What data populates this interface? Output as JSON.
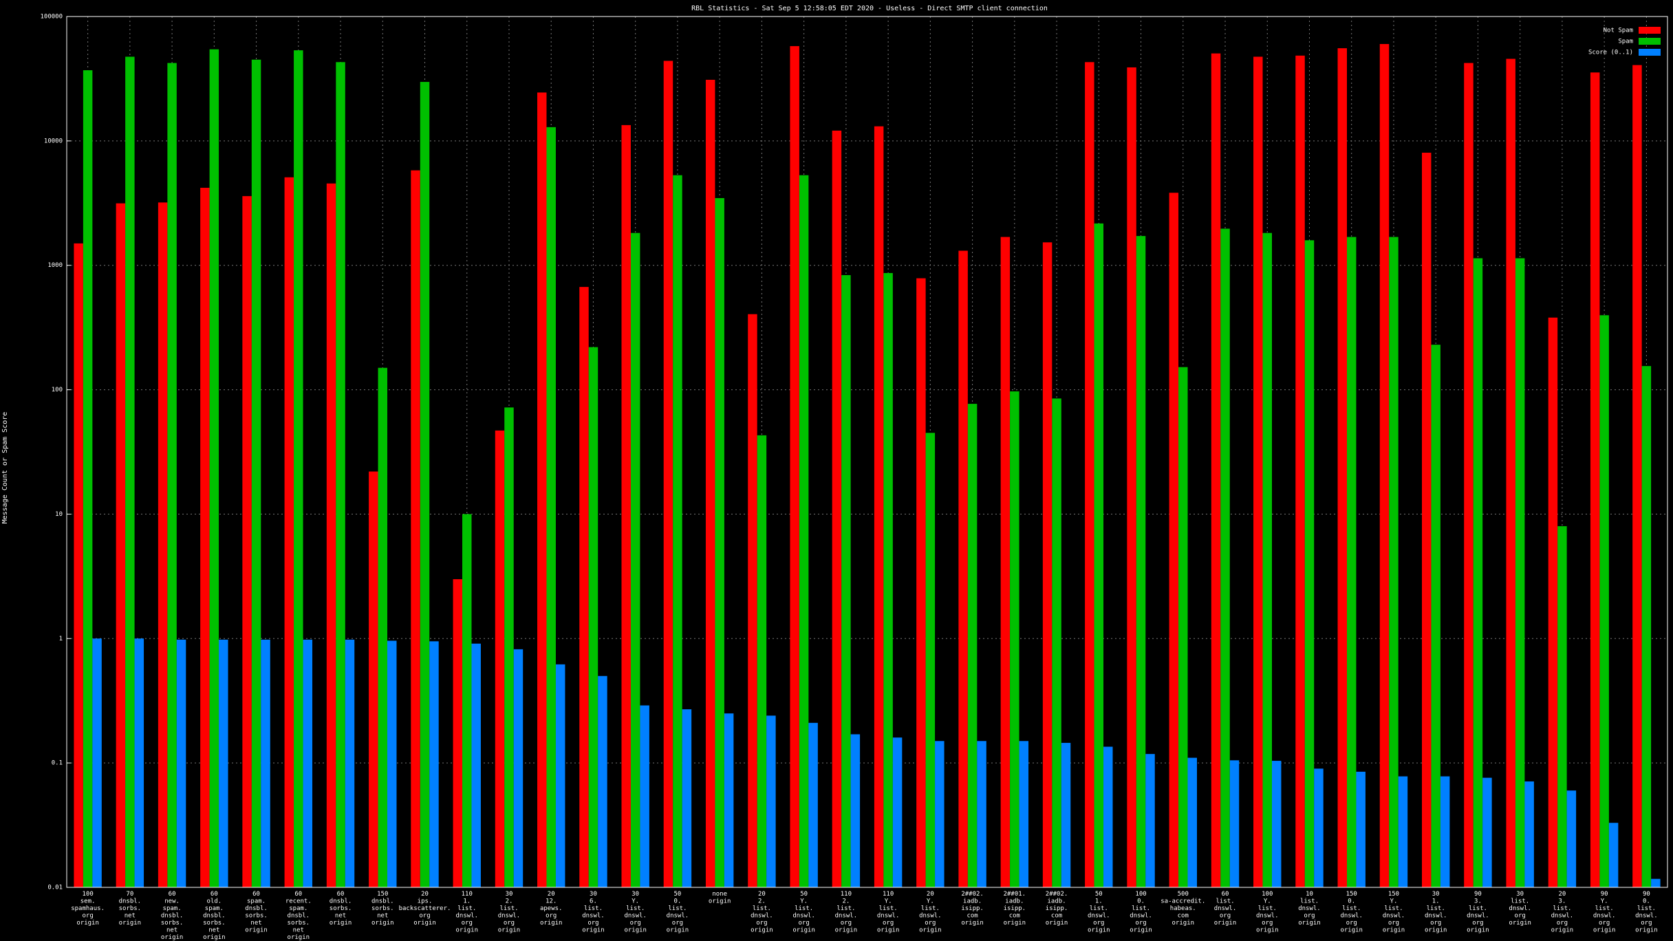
{
  "chart_data": {
    "type": "bar",
    "title": "RBL Statistics - Sat Sep  5 12:58:05 EDT 2020 - Useless - Direct SMTP client connection",
    "y_label": "Message Count or Spam Score",
    "log_scale": true,
    "grid": true,
    "legend": "upper right",
    "ylim": [
      0.01,
      100000
    ],
    "yticks": [
      0.01,
      0.1,
      1,
      10,
      100,
      1000,
      10000,
      100000
    ],
    "categories": [
      [
        "100",
        "sem.",
        "spamhaus.",
        "org",
        "origin"
      ],
      [
        "70",
        "dnsbl.",
        "sorbs.",
        "net",
        "origin"
      ],
      [
        "60",
        "new.",
        "spam.",
        "dnsbl.",
        "sorbs.",
        "net",
        "origin"
      ],
      [
        "60",
        "old.",
        "spam.",
        "dnsbl.",
        "sorbs.",
        "net",
        "origin"
      ],
      [
        "60",
        "spam.",
        "dnsbl.",
        "sorbs.",
        "net",
        "origin"
      ],
      [
        "60",
        "recent.",
        "spam.",
        "dnsbl.",
        "sorbs.",
        "net",
        "origin"
      ],
      [
        "60",
        "dnsbl.",
        "sorbs.",
        "net",
        "origin"
      ],
      [
        "150",
        "dnsbl.",
        "sorbs.",
        "net",
        "origin"
      ],
      [
        "20",
        "ips.",
        "backscatterer.",
        "org",
        "origin"
      ],
      [
        "110",
        "1.",
        "list.",
        "dnswl.",
        "org",
        "origin"
      ],
      [
        "30",
        "2.",
        "list.",
        "dnswl.",
        "org",
        "origin"
      ],
      [
        "20",
        "12.",
        "apews.",
        "org",
        "origin"
      ],
      [
        "30",
        "6.",
        "list.",
        "dnswl.",
        "org",
        "origin"
      ],
      [
        "30",
        "Y.",
        "list.",
        "dnswl.",
        "org",
        "origin"
      ],
      [
        "50",
        "0.",
        "list.",
        "dnswl.",
        "org",
        "origin"
      ],
      [
        "none",
        "origin"
      ],
      [
        "20",
        "2.",
        "list.",
        "dnswl.",
        "org",
        "origin"
      ],
      [
        "50",
        "Y.",
        "list.",
        "dnswl.",
        "org",
        "origin"
      ],
      [
        "110",
        "2.",
        "list.",
        "dnswl.",
        "org",
        "origin"
      ],
      [
        "110",
        "Y.",
        "list.",
        "dnswl.",
        "org",
        "origin"
      ],
      [
        "20",
        "Y.",
        "list.",
        "dnswl.",
        "org",
        "origin"
      ],
      [
        "2##02.",
        "iadb.",
        "isipp.",
        "com",
        "origin"
      ],
      [
        "2##01.",
        "iadb.",
        "isipp.",
        "com",
        "origin"
      ],
      [
        "2##02.",
        "iadb.",
        "isipp.",
        "com",
        "origin"
      ],
      [
        "50",
        "1.",
        "list.",
        "dnswl.",
        "org",
        "origin"
      ],
      [
        "100",
        "0.",
        "list.",
        "dnswl.",
        "org",
        "origin"
      ],
      [
        "500",
        "sa-accredit.",
        "habeas.",
        "com",
        "origin"
      ],
      [
        "60",
        "list.",
        "dnswl.",
        "org",
        "origin"
      ],
      [
        "100",
        "Y.",
        "list.",
        "dnswl.",
        "org",
        "origin"
      ],
      [
        "10",
        "list.",
        "dnswl.",
        "org",
        "origin"
      ],
      [
        "150",
        "0.",
        "list.",
        "dnswl.",
        "org",
        "origin"
      ],
      [
        "150",
        "Y.",
        "list.",
        "dnswl.",
        "org",
        "origin"
      ],
      [
        "30",
        "1.",
        "list.",
        "dnswl.",
        "org",
        "origin"
      ],
      [
        "90",
        "3.",
        "list.",
        "dnswl.",
        "org",
        "origin"
      ],
      [
        "30",
        "list.",
        "dnswl.",
        "org",
        "origin"
      ],
      [
        "20",
        "3.",
        "list.",
        "dnswl.",
        "org",
        "origin"
      ],
      [
        "90",
        "Y.",
        "list.",
        "dnswl.",
        "org",
        "origin"
      ],
      [
        "90",
        "0.",
        "list.",
        "dnswl.",
        "org",
        "origin"
      ]
    ],
    "series": [
      {
        "name": "Not Spam",
        "color": "#ff0000",
        "values": [
          1500,
          3150,
          3200,
          4200,
          3600,
          5100,
          4550,
          22,
          5800,
          3.0,
          47,
          24500,
          670,
          13400,
          44000,
          31000,
          405,
          57800,
          12100,
          13100,
          787,
          1310,
          1690,
          1530,
          43000,
          39000,
          3830,
          50500,
          47500,
          48500,
          55600,
          60100,
          8040,
          42300,
          45700,
          380,
          35500,
          40700
        ]
      },
      {
        "name": "Spam",
        "color": "#00c000",
        "values": [
          37000,
          47500,
          42300,
          54500,
          45000,
          53500,
          43000,
          150,
          29800,
          10,
          72,
          12900,
          220,
          1820,
          5300,
          3470,
          43,
          5300,
          834,
          867,
          45,
          77,
          97,
          85,
          2170,
          1720,
          152,
          1970,
          1820,
          1590,
          1690,
          1690,
          230,
          1140,
          1140,
          8.0,
          397,
          155
        ]
      },
      {
        "name": "Score (0..1)",
        "color": "#0080ff",
        "values": [
          1.0,
          1.0,
          0.98,
          0.98,
          0.98,
          0.98,
          0.98,
          0.96,
          0.95,
          0.91,
          0.82,
          0.62,
          0.5,
          0.29,
          0.27,
          0.25,
          0.24,
          0.21,
          0.17,
          0.16,
          0.15,
          0.15,
          0.15,
          0.145,
          0.135,
          0.118,
          0.11,
          0.105,
          0.104,
          0.09,
          0.085,
          0.078,
          0.078,
          0.076,
          0.071,
          0.06,
          0.033,
          0.0117
        ]
      }
    ]
  }
}
